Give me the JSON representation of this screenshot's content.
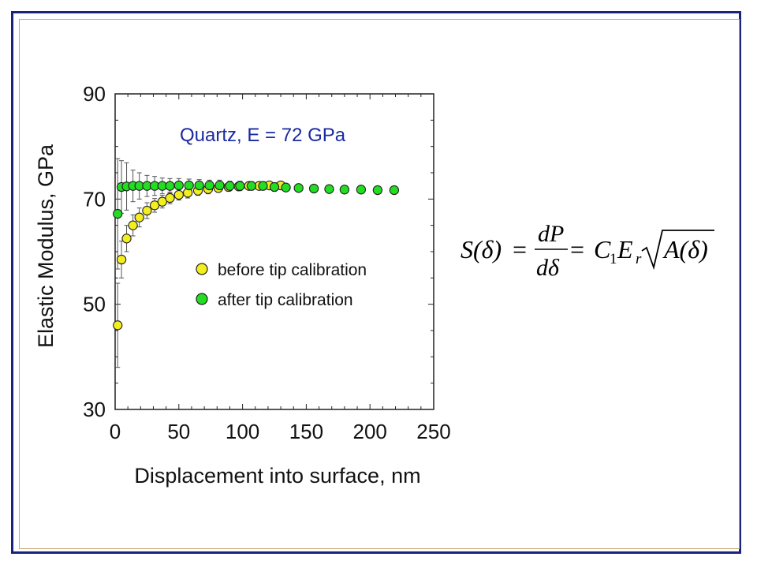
{
  "chart_data": {
    "type": "scatter",
    "xlabel": "Displacement into surface, nm",
    "ylabel": "Elastic Modulus, GPa",
    "xlim": [
      0,
      250
    ],
    "ylim": [
      30,
      90
    ],
    "xticks": [
      "0",
      "50",
      "100",
      "150",
      "200",
      "250"
    ],
    "yticks": [
      "30",
      "50",
      "70",
      "90"
    ],
    "grid": false,
    "legend_position": "center-right",
    "annotation": "Quartz, E = 72 GPa",
    "series": [
      {
        "name": "before tip calibration",
        "color": "#f3ee1f",
        "x": [
          2,
          5,
          9,
          14,
          19,
          25,
          31,
          37,
          43,
          50,
          57,
          65,
          73,
          81,
          89,
          97,
          105,
          113,
          121,
          130
        ],
        "y": [
          46,
          58.5,
          62.5,
          65,
          66.5,
          67.8,
          68.8,
          69.5,
          70.2,
          70.8,
          71.2,
          71.6,
          71.9,
          72.1,
          72.3,
          72.4,
          72.5,
          72.5,
          72.6,
          72.6
        ],
        "err": [
          8,
          3.5,
          2.5,
          2,
          1.8,
          1.5,
          1.3,
          1.2,
          1.1,
          1,
          1,
          0.9,
          0.9,
          0.8,
          0.8,
          0.8,
          0.7,
          0.7,
          0.7,
          0.7
        ]
      },
      {
        "name": "after tip calibration",
        "color": "#22dd22",
        "x": [
          2,
          5,
          9,
          14,
          19,
          25,
          31,
          37,
          43,
          50,
          58,
          66,
          74,
          82,
          90,
          98,
          107,
          116,
          125,
          134,
          144,
          156,
          168,
          180,
          193,
          206,
          219
        ],
        "y": [
          67.2,
          72.3,
          72.4,
          72.5,
          72.5,
          72.5,
          72.5,
          72.5,
          72.5,
          72.6,
          72.6,
          72.6,
          72.6,
          72.6,
          72.5,
          72.5,
          72.5,
          72.5,
          72.3,
          72.2,
          72.1,
          72,
          71.9,
          71.8,
          71.8,
          71.7,
          71.7
        ],
        "err": [
          10.5,
          5,
          4.5,
          3,
          2.5,
          2,
          1.8,
          1.5,
          1.4,
          1.3,
          1.2,
          1.1,
          1,
          1,
          0.9,
          0.9,
          0.8,
          0.8,
          0.8,
          0.7,
          0.7,
          0.7,
          0.7,
          0.6,
          0.6,
          0.6,
          0.6
        ]
      }
    ]
  },
  "equation": {
    "lhs": "S(δ)",
    "eq1": "=",
    "num": "dP",
    "den": "dδ",
    "eq2": "=",
    "c": "C",
    "c_sub": "1",
    "e": "E",
    "e_sub": "r",
    "area": "A(δ)"
  }
}
